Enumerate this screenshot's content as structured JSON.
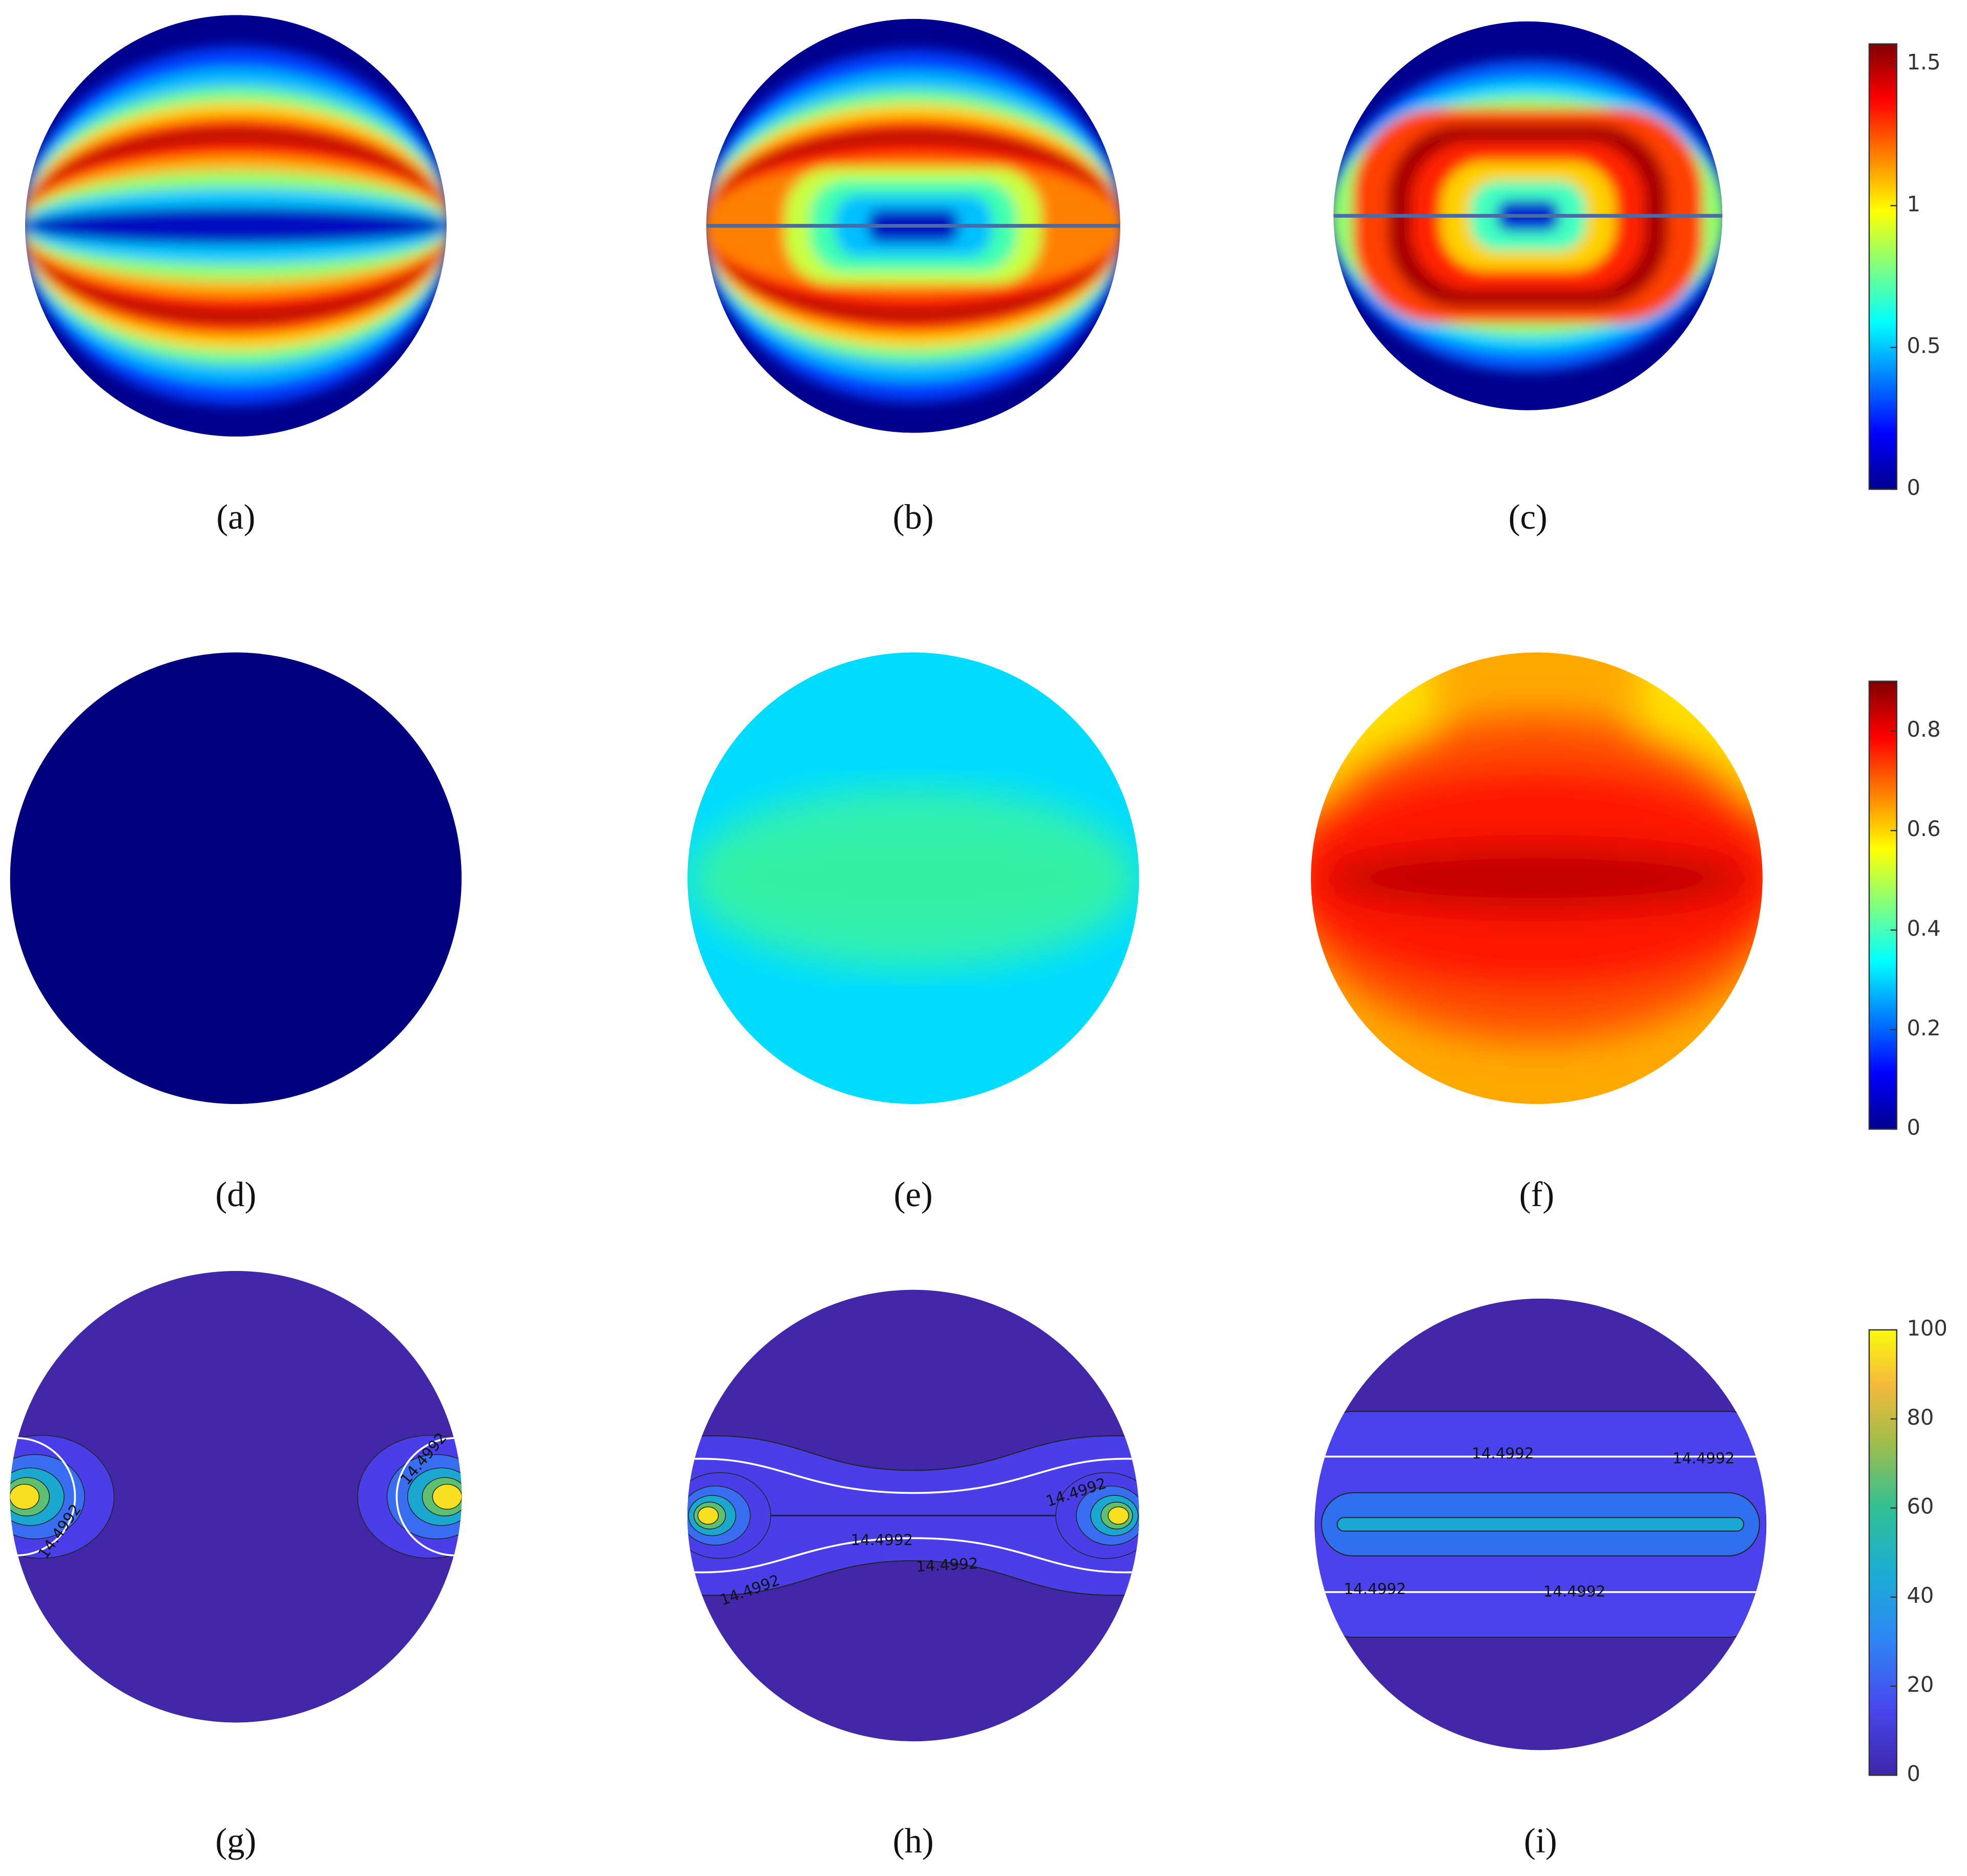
{
  "chart_data": [
    {
      "type": "field",
      "panels": [
        "(a)",
        "(b)",
        "(c)"
      ],
      "colormap": "jet",
      "ylim": [
        0,
        1.57
      ],
      "yticks": [
        0,
        0.5,
        1,
        1.5
      ]
    },
    {
      "type": "field",
      "panels": [
        "(d)",
        "(e)",
        "(f)"
      ],
      "colormap": "jet",
      "ylim": [
        0,
        0.9
      ],
      "yticks": [
        0,
        0.2,
        0.4,
        0.6,
        0.8
      ]
    },
    {
      "type": "contour",
      "panels": [
        "(g)",
        "(h)",
        "(i)"
      ],
      "colormap": "parula",
      "ylim": [
        0,
        100
      ],
      "yticks": [
        0,
        20,
        40,
        60,
        80,
        100
      ],
      "contour_label": 14.4992
    }
  ]
}
